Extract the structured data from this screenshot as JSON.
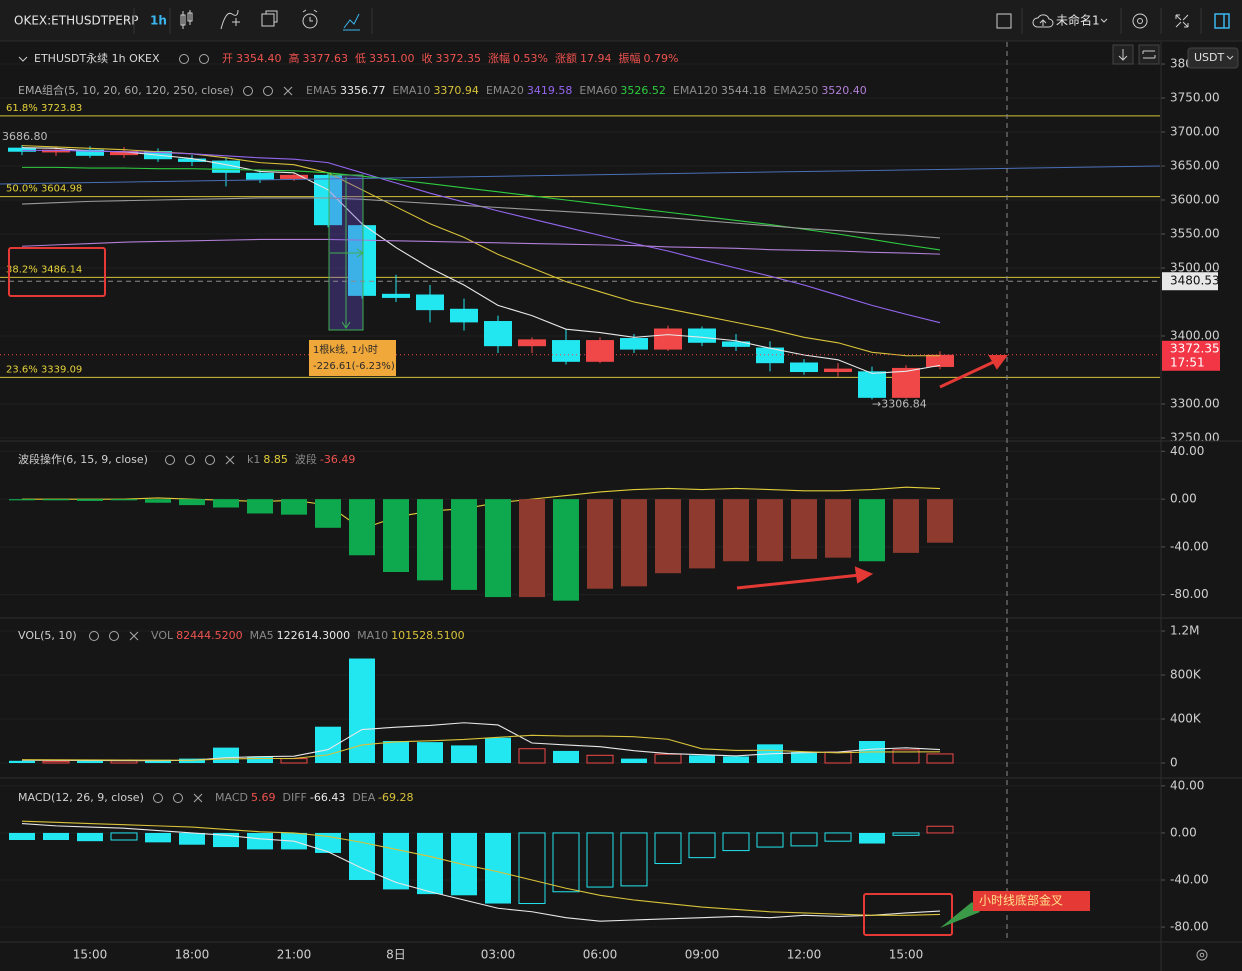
{
  "toolbar": {
    "symbol": "OKEX:ETHUSDTPERP",
    "interval": "1h",
    "layout_name": "未命名1",
    "currency": "USDT"
  },
  "chart_data": [
    {
      "type": "candlestick",
      "title": "ETHUSDT永续 1h OKEX",
      "ohlc_legend": [
        {
          "label": "开",
          "value": "3354.40"
        },
        {
          "label": "高",
          "value": "3377.63"
        },
        {
          "label": "低",
          "value": "3351.00"
        },
        {
          "label": "收",
          "value": "3372.35"
        },
        {
          "label": "涨幅",
          "value": "0.53%"
        },
        {
          "label": "涨额",
          "value": "17.94"
        },
        {
          "label": "振幅",
          "value": "0.79%"
        }
      ],
      "indicator_title": "EMA组合(5, 10, 20, 60, 120, 250, close)",
      "categories": [
        null,
        null,
        "15:00",
        null,
        null,
        "18:00",
        null,
        null,
        "21:00",
        null,
        null,
        "8日",
        null,
        null,
        "03:00",
        null,
        null,
        "06:00",
        null,
        null,
        "09:00",
        null,
        null,
        "12:00",
        null,
        null,
        "15:00",
        null
      ],
      "open": [
        3677,
        3670,
        3674,
        3666,
        3672,
        3661,
        3658,
        3640,
        3631,
        3637,
        3563,
        3462,
        3461,
        3440,
        3422,
        3385,
        3394,
        3362,
        3397,
        3380,
        3411,
        3392,
        3383,
        3361,
        3347,
        3348,
        3309,
        3354.4
      ],
      "high": [
        3681,
        3678,
        3679,
        3678,
        3676,
        3666,
        3663,
        3645,
        3640,
        3640,
        3567,
        3490,
        3475,
        3455,
        3430,
        3398,
        3410,
        3398,
        3403,
        3415,
        3414,
        3403,
        3392,
        3366,
        3360,
        3355,
        3357,
        3377.63
      ],
      "low": [
        3666,
        3665,
        3662,
        3662,
        3656,
        3650,
        3620,
        3625,
        3628,
        3560,
        3455,
        3450,
        3420,
        3408,
        3375,
        3375,
        3358,
        3360,
        3375,
        3378,
        3385,
        3378,
        3348,
        3343,
        3340,
        3306.84,
        3308,
        3351.0
      ],
      "close": [
        3671,
        3674,
        3665,
        3672,
        3660,
        3656,
        3640,
        3630,
        3637,
        3563,
        3459,
        3456,
        3438,
        3420,
        3385,
        3395,
        3362,
        3394,
        3380,
        3411,
        3390,
        3384,
        3360,
        3347,
        3352,
        3309,
        3353,
        3372.35
      ],
      "up_color": "#f04848",
      "down_color": "#22e6f0",
      "series": [
        {
          "name": "EMA5",
          "type": "line",
          "color": "#e8e8e8",
          "value_label": "3356.77",
          "values": [
            3677,
            3676,
            3672,
            3671,
            3666,
            3661,
            3652,
            3642,
            3640,
            3615,
            3565,
            3530,
            3500,
            3475,
            3445,
            3430,
            3410,
            3405,
            3398,
            3402,
            3398,
            3393,
            3382,
            3372,
            3365,
            3345,
            3348,
            3356.77
          ]
        },
        {
          "name": "EMA10",
          "type": "line",
          "color": "#d8c23a",
          "value_label": "3370.94",
          "values": [
            3680,
            3678,
            3676,
            3674,
            3671,
            3668,
            3662,
            3655,
            3652,
            3640,
            3615,
            3590,
            3565,
            3545,
            3520,
            3500,
            3480,
            3465,
            3450,
            3440,
            3430,
            3420,
            3410,
            3398,
            3390,
            3376,
            3371,
            3370.94
          ]
        },
        {
          "name": "EMA20",
          "type": "line",
          "color": "#9466f0",
          "value_label": "3419.58",
          "values": [
            3673,
            3673,
            3672,
            3671,
            3670,
            3668,
            3665,
            3662,
            3660,
            3655,
            3640,
            3625,
            3610,
            3597,
            3584,
            3572,
            3560,
            3548,
            3536,
            3525,
            3512,
            3500,
            3488,
            3475,
            3460,
            3445,
            3432,
            3419.58
          ]
        },
        {
          "name": "EMA60",
          "type": "line",
          "color": "#2ecc40",
          "value_label": "3526.52",
          "values": [
            3648,
            3648,
            3647,
            3647,
            3646,
            3646,
            3645,
            3644,
            3643,
            3640,
            3635,
            3630,
            3624,
            3618,
            3612,
            3606,
            3600,
            3594,
            3588,
            3582,
            3576,
            3570,
            3564,
            3557,
            3550,
            3542,
            3534,
            3526.52
          ]
        },
        {
          "name": "EMA120",
          "type": "line",
          "color": "#9a9a9a",
          "value_label": "3544.18",
          "values": [
            3594,
            3596,
            3598,
            3599,
            3600,
            3601,
            3602,
            3603,
            3603,
            3603,
            3601,
            3598,
            3595,
            3592,
            3589,
            3586,
            3583,
            3580,
            3577,
            3574,
            3570,
            3566,
            3562,
            3558,
            3555,
            3551,
            3548,
            3544.18
          ]
        },
        {
          "name": "EMA250",
          "type": "line",
          "color": "#b27fd8",
          "value_label": "3520.40",
          "values": [
            3532,
            3534,
            3536,
            3538,
            3539,
            3540,
            3541,
            3542,
            3542,
            3542,
            3541,
            3540,
            3539,
            3538,
            3537,
            3536,
            3535,
            3534,
            3533,
            3531,
            3530,
            3529,
            3527,
            3526,
            3525,
            3523,
            3522,
            3520.4
          ]
        }
      ],
      "fib_levels": [
        {
          "label": "61.8% 3723.83",
          "value": 3723.83
        },
        {
          "label": "50.0% 3604.98",
          "value": 3604.98
        },
        {
          "label": "38.2% 3486.14",
          "value": 3486.14
        },
        {
          "label": "23.6% 3339.09",
          "value": 3339.09
        }
      ],
      "high_marker": {
        "label": "3686.80",
        "value": 3686.8
      },
      "low_marker": {
        "label": "→3306.84",
        "value": 3306.84
      },
      "measure": {
        "line1": "1根k线, 1小时",
        "line2": "-226.61(-6.23%)"
      },
      "crosshair": {
        "label": "3480.53",
        "value": 3480.53
      },
      "last_price": {
        "label": "3372.35",
        "value": 3372.35,
        "countdown": "17:51"
      },
      "ylim": [
        3247,
        3828
      ],
      "yticks": [
        {
          "value": 3250,
          "label": "3250.00"
        },
        {
          "value": 3300,
          "label": "3300.00"
        },
        {
          "value": 3400,
          "label": "3400.00"
        },
        {
          "value": 3500,
          "label": "3500.00"
        },
        {
          "value": 3550,
          "label": "3550.00"
        },
        {
          "value": 3600,
          "label": "3600.00"
        },
        {
          "value": 3650,
          "label": "3650.00"
        },
        {
          "value": 3700,
          "label": "3700.00"
        },
        {
          "value": 3750,
          "label": "3750.00"
        },
        3800
      ],
      "grid": true
    },
    {
      "type": "bar",
      "title": "波段操作(6, 15, 9, close)",
      "series": [
        {
          "name": "k1",
          "type": "line",
          "color": "#e0cd3a",
          "value_label": "8.85",
          "values": [
            0,
            0,
            0,
            0,
            1,
            0,
            -1,
            -2,
            -1,
            -5,
            -25,
            -15,
            -10,
            -8,
            -3,
            0,
            3,
            6,
            8,
            9,
            8,
            9,
            8,
            7,
            7,
            8,
            10,
            8.85
          ]
        },
        {
          "name": "波段",
          "type": "bar",
          "color": "#ef5350",
          "value_label": "-36.49",
          "values": [
            -1,
            -1,
            -1.5,
            -1,
            -3,
            -5,
            -7,
            -12,
            -13,
            -24,
            -47,
            -61,
            -68,
            -76,
            -82,
            -82,
            -85,
            -75,
            -73,
            -62,
            -58,
            -52,
            -52,
            -50,
            -49,
            -52,
            -45,
            -36.49
          ],
          "colors": [
            "#0ea84e",
            "#0ea84e",
            "#0ea84e",
            "#0ea84e",
            "#0ea84e",
            "#0ea84e",
            "#0ea84e",
            "#0ea84e",
            "#0ea84e",
            "#0ea84e",
            "#0ea84e",
            "#0ea84e",
            "#0ea84e",
            "#0ea84e",
            "#0ea84e",
            "#8e3a2e",
            "#0ea84e",
            "#8e3a2e",
            "#8e3a2e",
            "#8e3a2e",
            "#8e3a2e",
            "#8e3a2e",
            "#8e3a2e",
            "#8e3a2e",
            "#8e3a2e",
            "#0ea84e",
            "#8e3a2e",
            "#8e3a2e"
          ]
        }
      ],
      "ylim": [
        -97,
        47
      ],
      "yticks": [
        {
          "value": 40,
          "label": "40.00"
        },
        {
          "value": 0,
          "label": "0.00"
        },
        {
          "value": -40,
          "label": "-40.00"
        },
        {
          "value": -80,
          "label": "-80.00"
        }
      ],
      "grid": true
    },
    {
      "type": "bar",
      "title": "VOL(5, 10)",
      "series": [
        {
          "name": "VOL",
          "type": "bar",
          "color": "#ef5350",
          "value_label": "82444.5200",
          "values": [
            20000,
            15000,
            20000,
            20000,
            30000,
            40000,
            140000,
            60000,
            40000,
            330000,
            950000,
            200000,
            190000,
            160000,
            230000,
            130000,
            110000,
            70000,
            40000,
            80000,
            70000,
            60000,
            170000,
            100000,
            100000,
            200000,
            120000,
            82444.52
          ]
        },
        {
          "name": "MA5",
          "type": "line",
          "color": "#e8e8e8",
          "value_label": "122614.3000",
          "values": [
            25000,
            24000,
            23000,
            22000,
            21000,
            25000,
            49000,
            58000,
            62000,
            122000,
            304000,
            326000,
            342000,
            366000,
            346000,
            182000,
            164000,
            148000,
            112000,
            86000,
            76000,
            64000,
            84000,
            94000,
            100000,
            126000,
            138000,
            122614.3
          ]
        },
        {
          "name": "MA10",
          "type": "line",
          "color": "#d8c23a",
          "value_label": "101528.5100",
          "values": [
            30000,
            29000,
            28000,
            27000,
            26000,
            25000,
            37000,
            41000,
            42000,
            74000,
            164000,
            193000,
            202000,
            214000,
            234000,
            252000,
            245000,
            245000,
            239000,
            216000,
            129000,
            114000,
            116000,
            103000,
            93000,
            101000,
            101000,
            101528.51
          ]
        }
      ],
      "ylim": [
        -109000,
        1282000
      ],
      "yticks": [
        0,
        {
          "value": 400000,
          "label": "400K"
        },
        {
          "value": 800000,
          "label": "800K"
        },
        {
          "value": 1200000,
          "label": "1.2M"
        }
      ],
      "grid": true
    },
    {
      "type": "bar",
      "title": "MACD(12, 26, 9, close)",
      "series": [
        {
          "name": "MACD",
          "type": "bar",
          "color": "#ef5350",
          "value_label": "5.69",
          "values": [
            -6,
            -6,
            -7,
            -6,
            -8,
            -10,
            -12,
            -14,
            -14,
            -17,
            -40,
            -48,
            -52,
            -53,
            -60,
            -60,
            -50,
            -46,
            -45,
            -26,
            -21,
            -15,
            -12,
            -11,
            -7,
            -9,
            -2,
            5.69
          ],
          "styles": [
            "solid",
            "solid",
            "solid",
            "hollow",
            "solid",
            "solid",
            "solid",
            "solid",
            "solid",
            "solid",
            "solid",
            "solid",
            "solid",
            "solid",
            "solid",
            "hollow",
            "hollow",
            "hollow",
            "hollow",
            "hollow",
            "hollow",
            "hollow",
            "hollow",
            "hollow",
            "hollow",
            "solid",
            "hollow",
            "hollow"
          ]
        },
        {
          "name": "DIFF",
          "type": "line",
          "color": "#e8e8e8",
          "value_label": "-66.43",
          "values": [
            8,
            6,
            5,
            4,
            2,
            0,
            -2,
            -5,
            -7,
            -16,
            -30,
            -42,
            -50,
            -57,
            -64,
            -67,
            -72,
            -75,
            -74,
            -73,
            -72,
            -71,
            -72,
            -70,
            -71,
            -70,
            -68,
            -66.43
          ]
        },
        {
          "name": "DEA",
          "type": "line",
          "color": "#d8c23a",
          "value_label": "-69.28",
          "values": [
            10,
            9,
            8,
            7,
            6,
            5,
            3,
            1,
            0,
            -3,
            -8,
            -14,
            -20,
            -27,
            -33,
            -40,
            -47,
            -53,
            -57,
            -60,
            -63,
            -65,
            -67,
            -68,
            -69,
            -70,
            -70,
            -69.28
          ]
        }
      ],
      "annotation": "小时线底部金叉",
      "ylim": [
        -91,
        45
      ],
      "yticks": [
        {
          "value": 40,
          "label": "40.00"
        },
        {
          "value": 0,
          "label": "0.00"
        },
        {
          "value": -40,
          "label": "-40.00"
        },
        {
          "value": -80,
          "label": "-80.00"
        }
      ],
      "grid": true
    }
  ]
}
